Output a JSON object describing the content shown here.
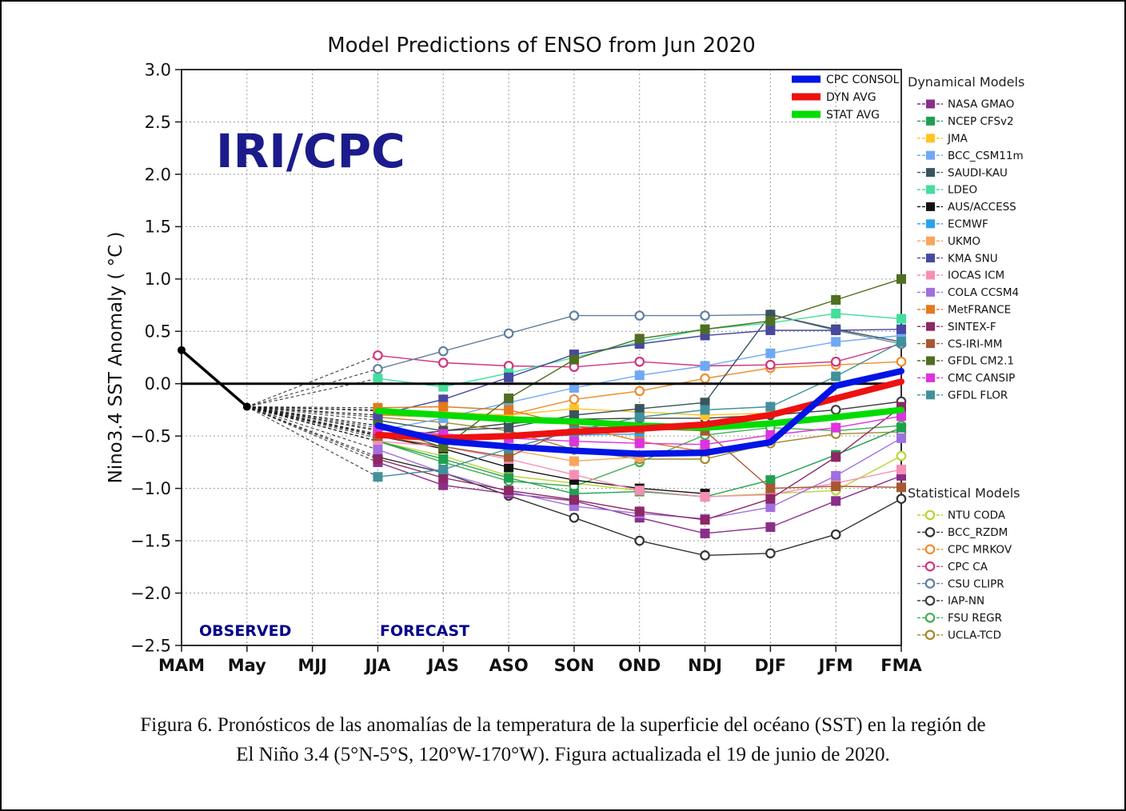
{
  "window": {
    "background": "#ffffff",
    "frame_border": "#000000"
  },
  "chart_data": {
    "type": "line",
    "title": "Model Predictions of ENSO from Jun 2020",
    "ylabel": "Nino3.4 SST Anomaly ( °C )",
    "watermark": "IRI/CPC",
    "watermark_color": "#1b1b8c",
    "region_labels": {
      "observed": "OBSERVED",
      "forecast": "FORECAST",
      "color": "#00008b"
    },
    "x_categories": [
      "MAM",
      "May",
      "MJJ",
      "JJA",
      "JAS",
      "ASO",
      "SON",
      "OND",
      "NDJ",
      "DJF",
      "JFM",
      "FMA"
    ],
    "forecast_start_index": 3,
    "ylim": [
      -2.5,
      3.0
    ],
    "ytick_step": 0.5,
    "grid": true,
    "observed": {
      "x": [
        "MAM",
        "May"
      ],
      "values": [
        0.32,
        -0.22
      ],
      "color": "#000000"
    },
    "averages": [
      {
        "name": "CPC CONSOL",
        "color": "#0014e6",
        "values": [
          -0.4,
          -0.55,
          -0.6,
          -0.64,
          -0.67,
          -0.66,
          -0.56,
          -0.02,
          0.12
        ]
      },
      {
        "name": "DYN AVG",
        "color": "#ee1111",
        "values": [
          -0.49,
          -0.52,
          -0.5,
          -0.46,
          -0.43,
          -0.39,
          -0.3,
          -0.14,
          0.02
        ]
      },
      {
        "name": "STAT AVG",
        "color": "#00dc00",
        "values": [
          -0.26,
          -0.3,
          -0.34,
          -0.36,
          -0.4,
          -0.42,
          -0.38,
          -0.32,
          -0.25
        ]
      }
    ],
    "dynamical_models": {
      "header": "Dynamical Models",
      "marker": "square",
      "series": [
        {
          "name": "NASA GMAO",
          "color": "#8a2e8a",
          "values": [
            -0.75,
            -0.97,
            -1.05,
            -1.12,
            -1.28,
            -1.43,
            -1.37,
            -1.12,
            -0.88
          ]
        },
        {
          "name": "NCEP CFSv2",
          "color": "#1fa050",
          "values": [
            -0.55,
            -0.72,
            -0.9,
            -1.05,
            -1.03,
            -1.08,
            -0.92,
            -0.68,
            -0.42
          ]
        },
        {
          "name": "JMA",
          "color": "#ffc425",
          "values": [
            -0.25,
            -0.27,
            -0.3,
            -0.24,
            -0.27,
            -0.3,
            -0.28,
            null,
            null
          ]
        },
        {
          "name": "BCC_CSM11m",
          "color": "#6fa8f5",
          "values": [
            -0.45,
            -0.33,
            -0.18,
            -0.04,
            0.08,
            0.17,
            0.29,
            0.4,
            0.46
          ]
        },
        {
          "name": "SAUDI-KAU",
          "color": "#39545e",
          "values": [
            -0.35,
            -0.45,
            -0.42,
            -0.3,
            -0.24,
            -0.18,
            0.66,
            0.52,
            0.4
          ]
        },
        {
          "name": "LDEO",
          "color": "#44de9c",
          "values": [
            0.05,
            -0.03,
            0.1,
            0.25,
            0.4,
            0.52,
            0.58,
            0.67,
            0.62
          ]
        },
        {
          "name": "AUS/ACCESS",
          "color": "#111111",
          "values": [
            -0.5,
            -0.62,
            -0.8,
            -0.92,
            -1.0,
            -1.05,
            null,
            null,
            null
          ]
        },
        {
          "name": "ECMWF",
          "color": "#2ba3e8",
          "values": [
            -0.42,
            -0.5,
            -0.52,
            -0.49,
            -0.48,
            null,
            null,
            null,
            null
          ]
        },
        {
          "name": "UKMO",
          "color": "#f7a55c",
          "values": [
            -0.48,
            -0.55,
            -0.63,
            -0.74,
            -0.7,
            -0.62,
            null,
            null,
            null
          ]
        },
        {
          "name": "KMA SNU",
          "color": "#4848a2",
          "values": [
            -0.3,
            -0.15,
            0.06,
            0.28,
            0.38,
            0.46,
            0.51,
            0.51,
            0.52
          ]
        },
        {
          "name": "IOCAS ICM",
          "color": "#f78fb5",
          "values": [
            -0.55,
            -0.6,
            -0.72,
            -0.87,
            -1.02,
            -1.08,
            -1.06,
            -0.95,
            -0.82
          ]
        },
        {
          "name": "COLA CCSM4",
          "color": "#a06fe0",
          "values": [
            -0.63,
            -0.85,
            -1.03,
            -1.17,
            -1.24,
            -1.29,
            -1.18,
            -0.88,
            -0.52
          ]
        },
        {
          "name": "MetFRANCE",
          "color": "#e5791e",
          "values": [
            -0.23,
            -0.22,
            -0.25,
            -0.4,
            -0.55,
            -0.65,
            null,
            null,
            null
          ]
        },
        {
          "name": "SINTEX-F",
          "color": "#8d2765",
          "values": [
            -0.72,
            -0.9,
            -1.02,
            -1.11,
            -1.22,
            -1.3,
            -1.1,
            -0.7,
            -0.22
          ]
        },
        {
          "name": "CS-IRI-MM",
          "color": "#a65832",
          "values": [
            -0.5,
            -0.6,
            -0.7,
            -0.41,
            -0.43,
            -0.45,
            -1.0,
            -0.98,
            -0.99
          ]
        },
        {
          "name": "GFDL CM2.1",
          "color": "#4f6e22",
          "values": [
            -0.4,
            -0.61,
            -0.14,
            0.23,
            0.43,
            0.52,
            0.6,
            0.8,
            1.0
          ]
        },
        {
          "name": "CMC CANSIP",
          "color": "#dd33dd",
          "values": [
            -0.44,
            -0.48,
            -0.52,
            -0.55,
            -0.57,
            -0.58,
            -0.49,
            -0.42,
            -0.31
          ]
        },
        {
          "name": "GFDL FLOR",
          "color": "#40919c",
          "values": [
            -0.89,
            -0.82,
            -0.62,
            -0.45,
            -0.32,
            -0.25,
            -0.22,
            0.07,
            0.4
          ]
        }
      ]
    },
    "statistical_models": {
      "header": "Statistical Models",
      "marker": "circle",
      "series": [
        {
          "name": "NTU CODA",
          "color": "#bcd435",
          "values": [
            -0.55,
            -0.69,
            -0.88,
            -0.95,
            -1.02,
            -1.08,
            -1.05,
            -1.02,
            -0.69
          ]
        },
        {
          "name": "BCC_RZDM",
          "color": "#333333",
          "values": [
            -0.7,
            -0.85,
            -1.07,
            -1.28,
            -1.5,
            -1.64,
            -1.62,
            -1.44,
            -1.1
          ]
        },
        {
          "name": "CPC MRKOV",
          "color": "#ee8c29",
          "values": [
            -0.3,
            -0.32,
            -0.3,
            -0.15,
            -0.07,
            0.05,
            0.15,
            0.18,
            0.21
          ]
        },
        {
          "name": "CPC CA",
          "color": "#d1347f",
          "values": [
            0.27,
            0.2,
            0.17,
            0.16,
            0.21,
            0.17,
            0.18,
            0.21,
            0.38
          ]
        },
        {
          "name": "CSU CLIPR",
          "color": "#5f7f9e",
          "values": [
            0.14,
            0.31,
            0.48,
            0.65,
            0.65,
            0.65,
            0.66,
            0.51,
            0.38
          ]
        },
        {
          "name": "IAP-NN",
          "color": "#3f3f3f",
          "values": [
            -0.52,
            -0.45,
            -0.38,
            -0.34,
            -0.33,
            -0.33,
            -0.3,
            -0.25,
            -0.17
          ]
        },
        {
          "name": "FSU REGR",
          "color": "#3faf4f",
          "values": [
            -0.55,
            -0.75,
            -0.93,
            -0.98,
            -0.75,
            -0.49,
            -0.42,
            -0.45,
            -0.4
          ]
        },
        {
          "name": "UCLA-TCD",
          "color": "#a3892b",
          "values": [
            -0.32,
            -0.37,
            -0.45,
            -0.63,
            -0.72,
            -0.72,
            -0.57,
            -0.48,
            -0.46
          ]
        }
      ]
    }
  },
  "caption": {
    "line1": "Figura 6. Pronósticos de las anomalías de la temperatura de la superficie del océano (SST) en la región de",
    "line2": "El Niño 3.4 (5°N-5°S, 120°W-170°W). Figura actualizada el 19 de junio de 2020."
  }
}
